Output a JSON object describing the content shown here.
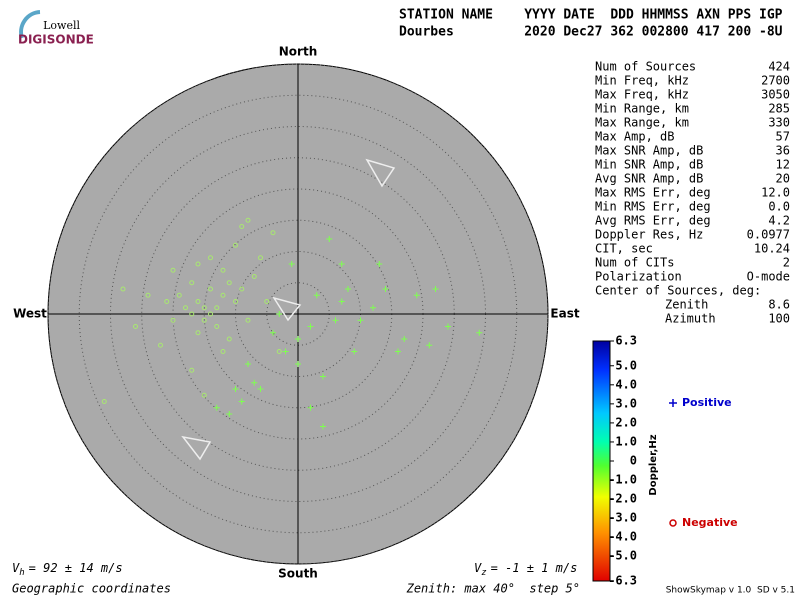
{
  "logo": {
    "top": "Lowell",
    "bottom": "DIGISONDE"
  },
  "header": {
    "line1": "STATION NAME    YYYY DATE  DDD HHMMSS AXN PPS IGP",
    "line2": "Dourbes         2020 Dec27 362 002800 417 200 -8U"
  },
  "stats": [
    [
      "Num of Sources",
      "424"
    ],
    [
      "Min Freq, kHz",
      "2700"
    ],
    [
      "Max Freq, kHz",
      "3050"
    ],
    [
      "Min Range, km",
      "285"
    ],
    [
      "Max Range, km",
      "330"
    ],
    [
      "Max Amp, dB",
      "57"
    ],
    [
      "Max SNR Amp, dB",
      "36"
    ],
    [
      "Min SNR Amp, dB",
      "12"
    ],
    [
      "Avg SNR Amp, dB",
      "20"
    ],
    [
      "Max RMS Err, deg",
      "12.0"
    ],
    [
      "Min RMS Err, deg",
      "0.0"
    ],
    [
      "Avg RMS Err, deg",
      "4.2"
    ],
    [
      "Doppler Res, Hz",
      "0.0977"
    ],
    [
      "CIT, sec",
      "10.24"
    ],
    [
      "Num of CITs",
      "2"
    ],
    [
      "Polarization",
      "O-mode"
    ],
    [
      "Center of Sources, deg:"
    ],
    [
      "Zenith",
      "8.6"
    ],
    [
      "Azimuth",
      "100"
    ]
  ],
  "compass": {
    "north": "North",
    "south": "South",
    "west": "West",
    "east": "East"
  },
  "footer": {
    "vh": {
      "symbol": "V",
      "subscript": "h",
      "text": "= 92 ± 14 m/s"
    },
    "vz": {
      "symbol": "V",
      "subscript": "z",
      "text": "= -1 ± 1 m/s"
    },
    "coordinates": "Geographic coordinates",
    "zenith": "Zenith: max 40°  step 5°",
    "version": "ShowSkymap v 1.0  SD v 5.1"
  },
  "colorbar": {
    "label": "Doppler,Hz",
    "ylim": [
      -6.3,
      6.3
    ],
    "yticks": [
      6.3,
      {
        "value": 5,
        "label": "5.0"
      },
      {
        "value": 4,
        "label": "4.0"
      },
      {
        "value": 3,
        "label": "3.0"
      },
      {
        "value": 2,
        "label": "2.0"
      },
      {
        "value": 1,
        "label": "1.0"
      },
      0,
      {
        "value": -1,
        "label": "-1.0"
      },
      {
        "value": -2,
        "label": "-2.0"
      },
      {
        "value": -3,
        "label": "-3.0"
      },
      {
        "value": -4,
        "label": "-4.0"
      },
      {
        "value": -5,
        "label": "-5.0"
      },
      -6.3
    ]
  },
  "chart_data": {
    "type": "scatter",
    "xlim": [
      -40,
      40
    ],
    "ylim": [
      -40,
      40
    ],
    "ring_ticks": [
      5,
      10,
      15,
      20,
      25,
      30,
      35,
      40
    ],
    "series": [
      {
        "name": "Positive",
        "marker": "plus",
        "color": "#7fff50",
        "label_color": "#0000cc",
        "x": [
          -8,
          -6,
          -4,
          -2,
          0,
          2,
          3,
          6,
          8,
          10,
          12,
          7,
          5,
          -1,
          -3,
          -9,
          -11,
          -13,
          -10,
          -7,
          2,
          4,
          14,
          16,
          17,
          21,
          24,
          29,
          22,
          7,
          9,
          13,
          19,
          4,
          0
        ],
        "y": [
          -8,
          -12,
          -3,
          -6,
          -8,
          -2,
          3,
          -1,
          4,
          -1,
          1,
          8,
          12,
          8,
          0,
          -14,
          -16,
          -15,
          -12,
          -11,
          -15,
          -18,
          4,
          -6,
          -4,
          -5,
          -2,
          -3,
          4,
          2,
          -6,
          8,
          3,
          -10,
          -4
        ]
      },
      {
        "name": "Negative",
        "marker": "circle",
        "color": "#a8e870",
        "label_color": "#cc0000",
        "x": [
          -15,
          -14,
          -16,
          -13,
          -17,
          -15,
          -12,
          -18,
          -14,
          -11,
          -16,
          -19,
          -10,
          -13,
          -20,
          -9,
          -12,
          -17,
          -8,
          -21,
          -14,
          -11,
          -24,
          -7,
          -10,
          -16,
          -26,
          -12,
          -6,
          -20,
          -9,
          -4,
          -17,
          -28,
          -5,
          -15,
          -31,
          -22,
          -3,
          -8
        ],
        "y": [
          1,
          0,
          2,
          1,
          0,
          -1,
          3,
          1,
          4,
          5,
          -3,
          3,
          2,
          -2,
          -1,
          4,
          7,
          5,
          -1,
          2,
          9,
          -4,
          3,
          6,
          11,
          8,
          -2,
          -6,
          9,
          7,
          14,
          13,
          -9,
          4,
          2,
          -13,
          -14,
          -5,
          -6,
          15
        ]
      }
    ]
  }
}
